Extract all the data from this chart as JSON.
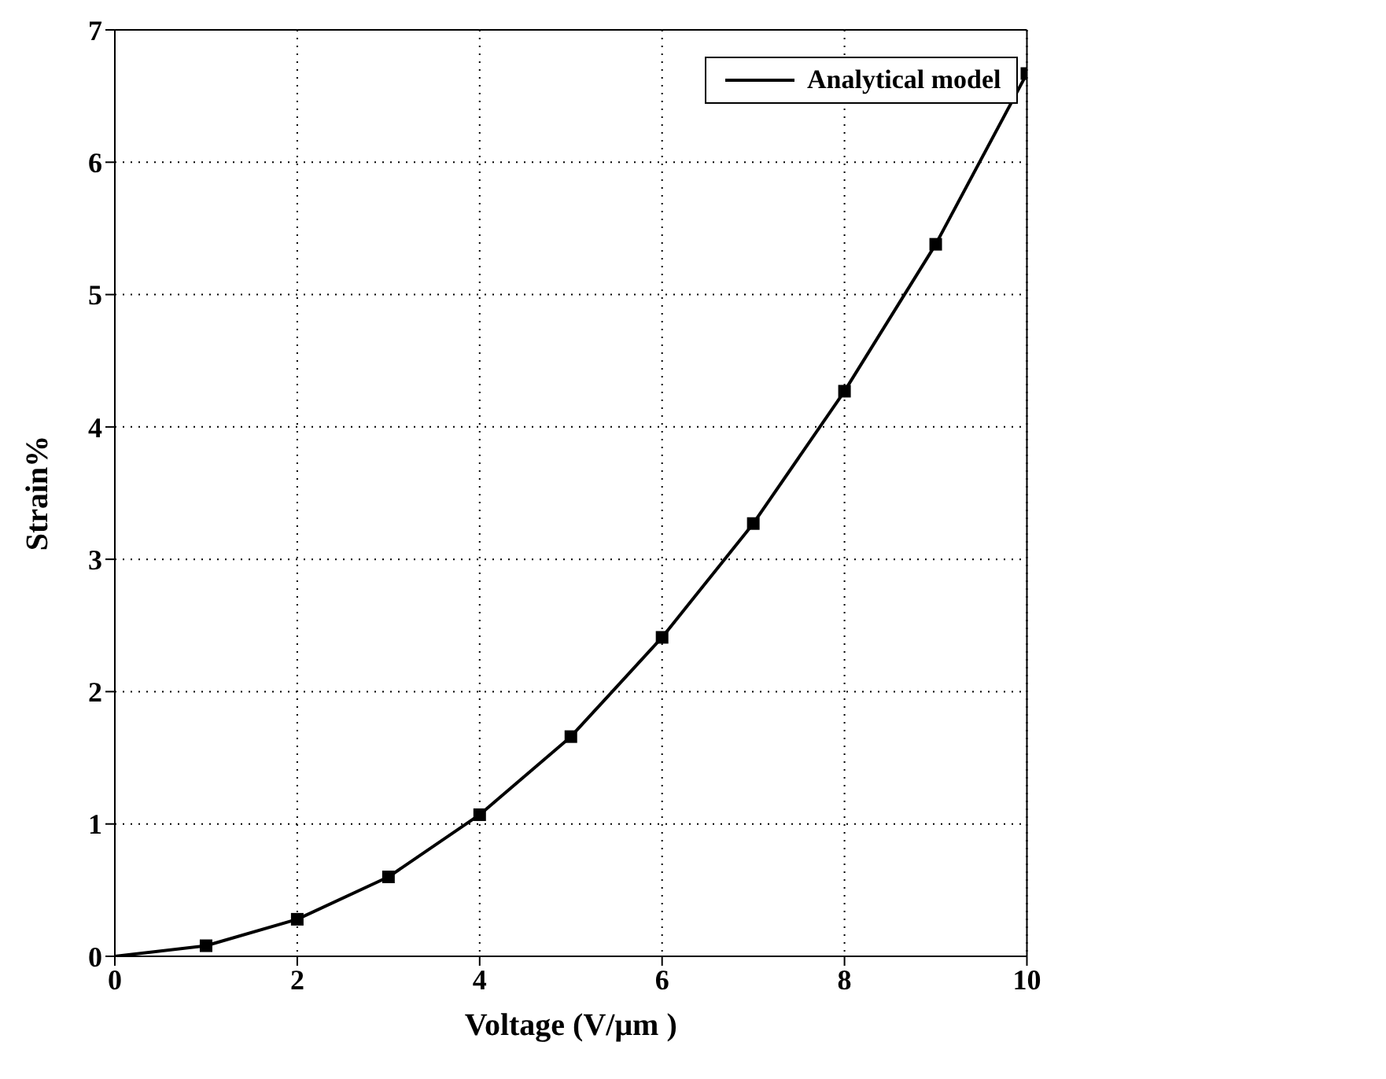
{
  "chart_data": {
    "type": "line",
    "xlabel": "Voltage (V/μm )",
    "ylabel": "Strain%",
    "xlim": [
      0,
      10
    ],
    "xticks": [
      0,
      2,
      4,
      6,
      8,
      10
    ],
    "ylim": [
      0,
      7
    ],
    "yticks": [
      0,
      1,
      2,
      3,
      4,
      5,
      6,
      7
    ],
    "grid": true,
    "legend": "top right",
    "series": [
      {
        "type": "scatter",
        "color": "#000000",
        "marker": "square",
        "x": [
          1,
          2,
          3,
          4,
          5,
          6,
          7,
          8,
          9,
          10
        ],
        "values": [
          0.08,
          0.28,
          0.6,
          1.07,
          1.66,
          2.41,
          3.27,
          4.27,
          5.38,
          6.67
        ]
      },
      {
        "type": "line",
        "name": "Analytical model",
        "color": "#000000",
        "marker": "none",
        "line_style": "solid",
        "x": [
          0,
          1,
          2,
          3,
          4,
          5,
          6,
          7,
          8,
          9,
          10
        ],
        "values": [
          0,
          0.08,
          0.28,
          0.6,
          1.07,
          1.66,
          2.41,
          3.27,
          4.27,
          5.38,
          6.67
        ]
      }
    ]
  }
}
